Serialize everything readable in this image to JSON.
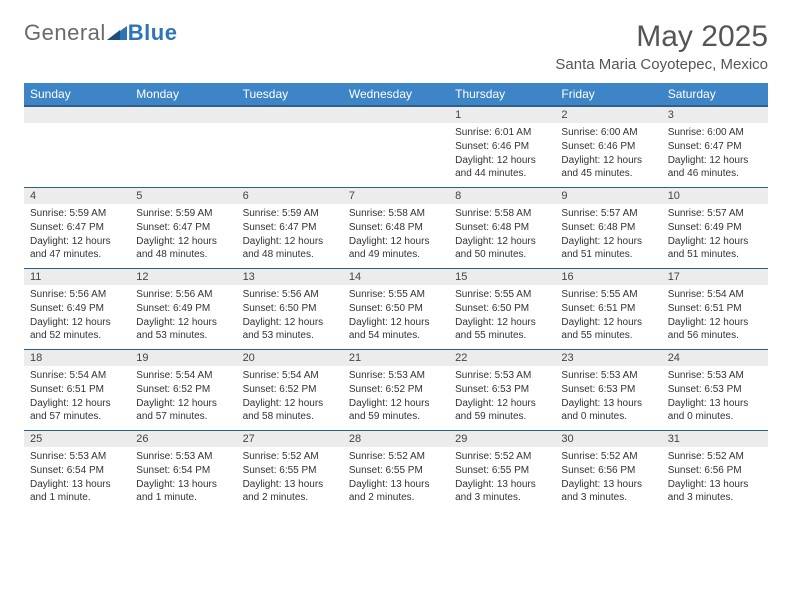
{
  "brand": {
    "part1": "General",
    "part2": "Blue"
  },
  "title": "May 2025",
  "location": "Santa Maria Coyotepec, Mexico",
  "colors": {
    "header_bg": "#3d85c6",
    "header_border": "#2e5f8a",
    "daynum_bg": "#ececec",
    "brand_blue": "#2e75b6",
    "text": "#333333",
    "muted": "#555555",
    "page_bg": "#ffffff"
  },
  "weekdays": [
    "Sunday",
    "Monday",
    "Tuesday",
    "Wednesday",
    "Thursday",
    "Friday",
    "Saturday"
  ],
  "first_weekday_index": 4,
  "days": [
    {
      "n": 1,
      "sunrise": "6:01 AM",
      "sunset": "6:46 PM",
      "daylight": "12 hours and 44 minutes."
    },
    {
      "n": 2,
      "sunrise": "6:00 AM",
      "sunset": "6:46 PM",
      "daylight": "12 hours and 45 minutes."
    },
    {
      "n": 3,
      "sunrise": "6:00 AM",
      "sunset": "6:47 PM",
      "daylight": "12 hours and 46 minutes."
    },
    {
      "n": 4,
      "sunrise": "5:59 AM",
      "sunset": "6:47 PM",
      "daylight": "12 hours and 47 minutes."
    },
    {
      "n": 5,
      "sunrise": "5:59 AM",
      "sunset": "6:47 PM",
      "daylight": "12 hours and 48 minutes."
    },
    {
      "n": 6,
      "sunrise": "5:59 AM",
      "sunset": "6:47 PM",
      "daylight": "12 hours and 48 minutes."
    },
    {
      "n": 7,
      "sunrise": "5:58 AM",
      "sunset": "6:48 PM",
      "daylight": "12 hours and 49 minutes."
    },
    {
      "n": 8,
      "sunrise": "5:58 AM",
      "sunset": "6:48 PM",
      "daylight": "12 hours and 50 minutes."
    },
    {
      "n": 9,
      "sunrise": "5:57 AM",
      "sunset": "6:48 PM",
      "daylight": "12 hours and 51 minutes."
    },
    {
      "n": 10,
      "sunrise": "5:57 AM",
      "sunset": "6:49 PM",
      "daylight": "12 hours and 51 minutes."
    },
    {
      "n": 11,
      "sunrise": "5:56 AM",
      "sunset": "6:49 PM",
      "daylight": "12 hours and 52 minutes."
    },
    {
      "n": 12,
      "sunrise": "5:56 AM",
      "sunset": "6:49 PM",
      "daylight": "12 hours and 53 minutes."
    },
    {
      "n": 13,
      "sunrise": "5:56 AM",
      "sunset": "6:50 PM",
      "daylight": "12 hours and 53 minutes."
    },
    {
      "n": 14,
      "sunrise": "5:55 AM",
      "sunset": "6:50 PM",
      "daylight": "12 hours and 54 minutes."
    },
    {
      "n": 15,
      "sunrise": "5:55 AM",
      "sunset": "6:50 PM",
      "daylight": "12 hours and 55 minutes."
    },
    {
      "n": 16,
      "sunrise": "5:55 AM",
      "sunset": "6:51 PM",
      "daylight": "12 hours and 55 minutes."
    },
    {
      "n": 17,
      "sunrise": "5:54 AM",
      "sunset": "6:51 PM",
      "daylight": "12 hours and 56 minutes."
    },
    {
      "n": 18,
      "sunrise": "5:54 AM",
      "sunset": "6:51 PM",
      "daylight": "12 hours and 57 minutes."
    },
    {
      "n": 19,
      "sunrise": "5:54 AM",
      "sunset": "6:52 PM",
      "daylight": "12 hours and 57 minutes."
    },
    {
      "n": 20,
      "sunrise": "5:54 AM",
      "sunset": "6:52 PM",
      "daylight": "12 hours and 58 minutes."
    },
    {
      "n": 21,
      "sunrise": "5:53 AM",
      "sunset": "6:52 PM",
      "daylight": "12 hours and 59 minutes."
    },
    {
      "n": 22,
      "sunrise": "5:53 AM",
      "sunset": "6:53 PM",
      "daylight": "12 hours and 59 minutes."
    },
    {
      "n": 23,
      "sunrise": "5:53 AM",
      "sunset": "6:53 PM",
      "daylight": "13 hours and 0 minutes."
    },
    {
      "n": 24,
      "sunrise": "5:53 AM",
      "sunset": "6:53 PM",
      "daylight": "13 hours and 0 minutes."
    },
    {
      "n": 25,
      "sunrise": "5:53 AM",
      "sunset": "6:54 PM",
      "daylight": "13 hours and 1 minute."
    },
    {
      "n": 26,
      "sunrise": "5:53 AM",
      "sunset": "6:54 PM",
      "daylight": "13 hours and 1 minute."
    },
    {
      "n": 27,
      "sunrise": "5:52 AM",
      "sunset": "6:55 PM",
      "daylight": "13 hours and 2 minutes."
    },
    {
      "n": 28,
      "sunrise": "5:52 AM",
      "sunset": "6:55 PM",
      "daylight": "13 hours and 2 minutes."
    },
    {
      "n": 29,
      "sunrise": "5:52 AM",
      "sunset": "6:55 PM",
      "daylight": "13 hours and 3 minutes."
    },
    {
      "n": 30,
      "sunrise": "5:52 AM",
      "sunset": "6:56 PM",
      "daylight": "13 hours and 3 minutes."
    },
    {
      "n": 31,
      "sunrise": "5:52 AM",
      "sunset": "6:56 PM",
      "daylight": "13 hours and 3 minutes."
    }
  ],
  "labels": {
    "sunrise_prefix": "Sunrise: ",
    "sunset_prefix": "Sunset: ",
    "daylight_prefix": "Daylight: "
  }
}
